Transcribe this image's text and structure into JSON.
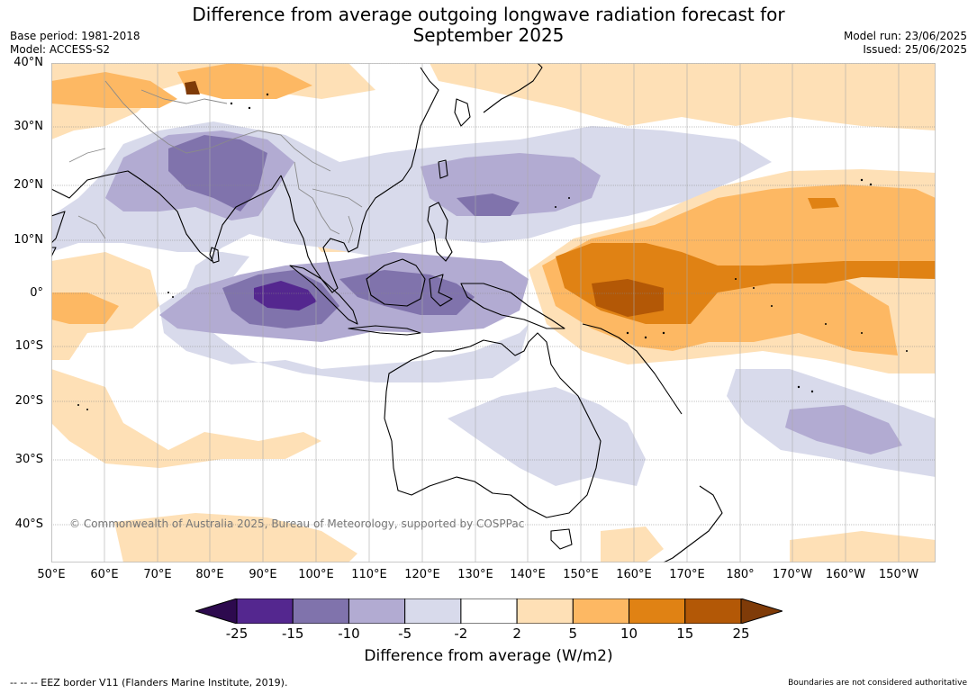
{
  "header": {
    "title_line1": "Difference from average outgoing longwave radiation forecast for",
    "title_line2": "September 2025",
    "base_period": "Base period: 1981-2018",
    "model": "Model: ACCESS-S2",
    "model_run": "Model run: 23/06/2025",
    "issued": "Issued: 25/06/2025"
  },
  "map": {
    "lat_labels": [
      "40°N",
      "30°N",
      "20°N",
      "10°N",
      "0°",
      "10°S",
      "20°S",
      "30°S",
      "40°S"
    ],
    "lon_labels": [
      "50°E",
      "60°E",
      "70°E",
      "80°E",
      "90°E",
      "100°E",
      "110°E",
      "120°E",
      "130°E",
      "140°E",
      "150°E",
      "160°E",
      "170°E",
      "180°",
      "170°W",
      "160°W",
      "150°W"
    ],
    "copyright": "© Commonwealth of Australia 2025, Bureau of Meteorology, supported by COSPPac"
  },
  "colorbar": {
    "labels": [
      "-25",
      "-15",
      "-10",
      "-5",
      "-2",
      "2",
      "5",
      "10",
      "15",
      "25"
    ],
    "colors": [
      "#2d0a4e",
      "#54278f",
      "#8073ac",
      "#b2abd2",
      "#d8daeb",
      "#ffffff",
      "#fee0b6",
      "#fdb863",
      "#e08214",
      "#b35806",
      "#7f3b08"
    ],
    "title": "Difference from average (W/m2)"
  },
  "footer": {
    "eez": "-- -- -- EEZ border V11 (Flanders Marine Institute, 2019).",
    "boundaries": "Boundaries are not considered authoritative"
  }
}
